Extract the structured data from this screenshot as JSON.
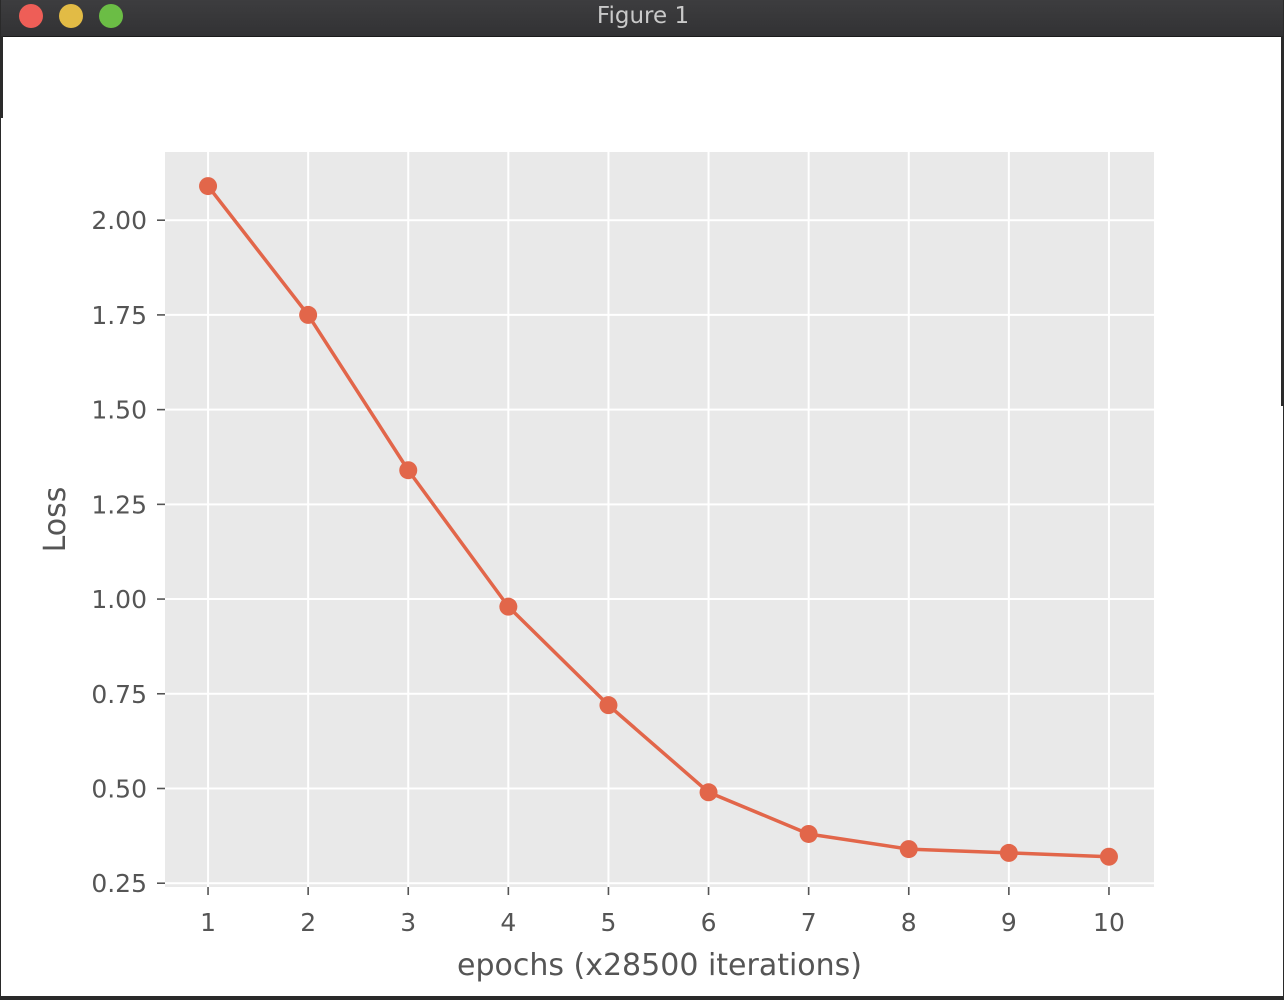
{
  "window": {
    "title": "Figure 1",
    "buttons": [
      "close",
      "minimize",
      "zoom"
    ]
  },
  "chart_data": {
    "type": "line",
    "title": "",
    "xlabel": "epochs (x28500 iterations)",
    "ylabel": "Loss",
    "x": [
      1,
      2,
      3,
      4,
      5,
      6,
      7,
      8,
      9,
      10
    ],
    "series": [
      {
        "values": [
          2.09,
          1.75,
          1.34,
          0.98,
          0.72,
          0.49,
          0.38,
          0.34,
          0.33,
          0.32
        ],
        "color": "#e2664a",
        "marker": "circle"
      }
    ],
    "xticks": [
      "1",
      "2",
      "3",
      "4",
      "5",
      "6",
      "7",
      "8",
      "9",
      "10"
    ],
    "yticks": [
      0.25,
      0.5,
      0.75,
      1.0,
      1.25,
      1.5,
      1.75,
      2.0
    ],
    "ytick_labels": [
      "0.25",
      "0.50",
      "0.75",
      "1.00",
      "1.25",
      "1.50",
      "1.75",
      "2.00"
    ],
    "xlim": [
      0.57,
      10.45
    ],
    "ylim": [
      0.24,
      2.18
    ],
    "grid": true,
    "style": "ggplot",
    "background_color": "#e9e9e9",
    "grid_color": "#ffffff"
  }
}
